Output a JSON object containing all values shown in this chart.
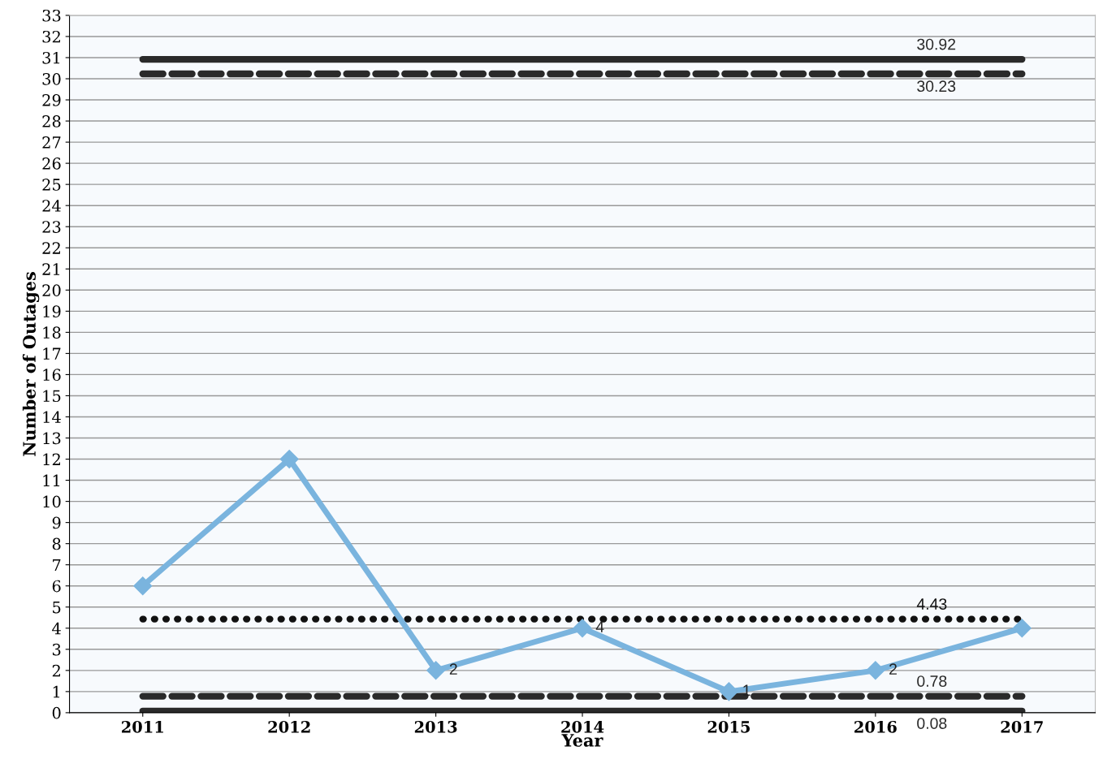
{
  "chart_data": {
    "type": "line",
    "xlabel": "Year",
    "ylabel": "Number of Outages",
    "categories": [
      "2011",
      "2012",
      "2013",
      "2014",
      "2015",
      "2016",
      "2017"
    ],
    "series": [
      {
        "color": "#7ab4de",
        "values": [
          6,
          12,
          2,
          4,
          1,
          2,
          4
        ],
        "value_labels": [
          null,
          null,
          "2",
          "4",
          "1",
          "2",
          null
        ]
      }
    ],
    "marker": "diamond",
    "ylim": [
      0,
      33
    ],
    "yticks": [
      0,
      1,
      2,
      3,
      4,
      5,
      6,
      7,
      8,
      9,
      10,
      11,
      12,
      13,
      14,
      15,
      16,
      17,
      18,
      19,
      20,
      21,
      22,
      23,
      24,
      25,
      26,
      27,
      28,
      29,
      30,
      31,
      32,
      33
    ],
    "grid": "y",
    "legend": false,
    "ref_lines": [
      {
        "axis": "y",
        "value": 30.92,
        "label": "30.92",
        "color": "#2a2a2a",
        "line_style": "solid"
      },
      {
        "axis": "y",
        "value": 30.23,
        "label": "30.23",
        "color": "#2a2a2a",
        "line_style": "dashed"
      },
      {
        "axis": "y",
        "value": 4.43,
        "label": "4.43",
        "color": "#111111",
        "line_style": "dotted"
      },
      {
        "axis": "y",
        "value": 0.78,
        "label": "0.78",
        "color": "#2a2a2a",
        "line_style": "dashed"
      },
      {
        "axis": "y",
        "value": 0.08,
        "label": "0.08",
        "color": "#2a2a2a",
        "line_style": "solid"
      }
    ]
  }
}
